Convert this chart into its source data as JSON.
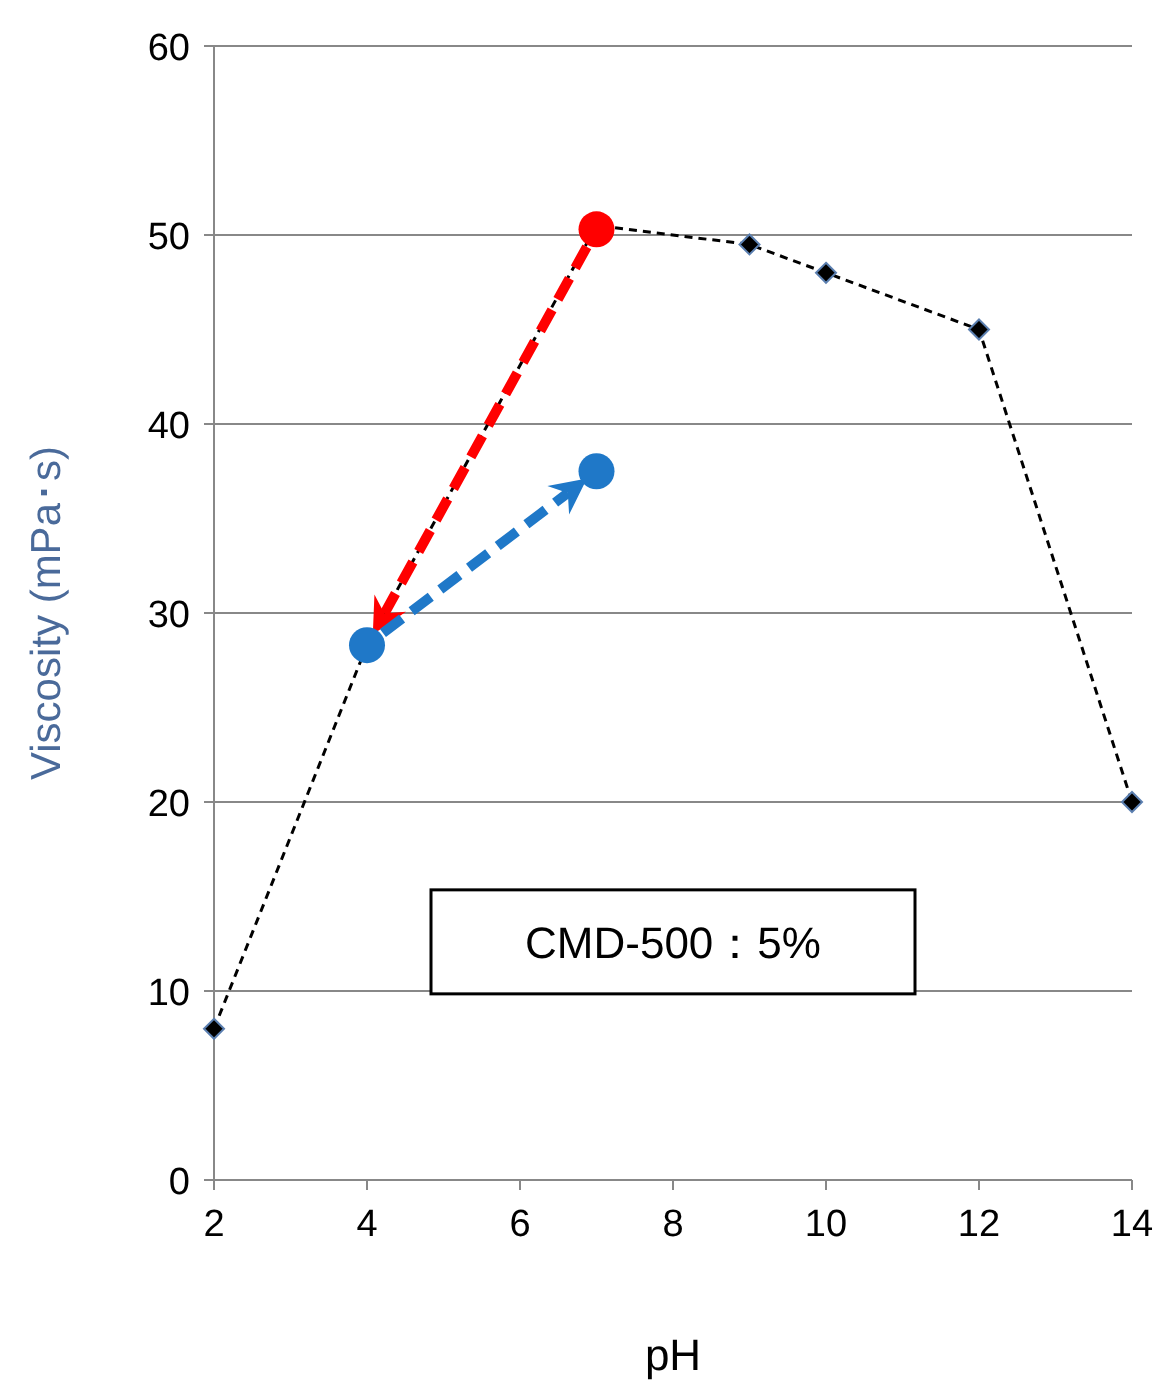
{
  "chart_data": {
    "type": "line",
    "xlabel": "pH",
    "ylabel": "Viscosity (mPa･s)",
    "xlim": [
      2,
      14
    ],
    "xticks": [
      2,
      4,
      6,
      8,
      10,
      12,
      14
    ],
    "ylim": [
      0,
      60
    ],
    "yticks": [
      0,
      10,
      20,
      30,
      40,
      50,
      60
    ],
    "grid": "y",
    "annotations": [
      "CMD-500：5%"
    ],
    "series": [
      {
        "color": "#000000",
        "marker": "diamond",
        "line_style": "dashed",
        "x": [
          2,
          4,
          7,
          9,
          10,
          12,
          14
        ],
        "values": [
          8,
          28.3,
          50.5,
          49.5,
          48,
          45,
          20
        ]
      },
      {
        "type": "scatter",
        "color": "#ff0000",
        "marker": "circle",
        "x": [
          7
        ],
        "values": [
          50.3
        ]
      },
      {
        "type": "scatter",
        "color": "#1f78c8",
        "marker": "circle",
        "x": [
          4,
          7
        ],
        "values": [
          28.3,
          37.5
        ]
      }
    ]
  }
}
